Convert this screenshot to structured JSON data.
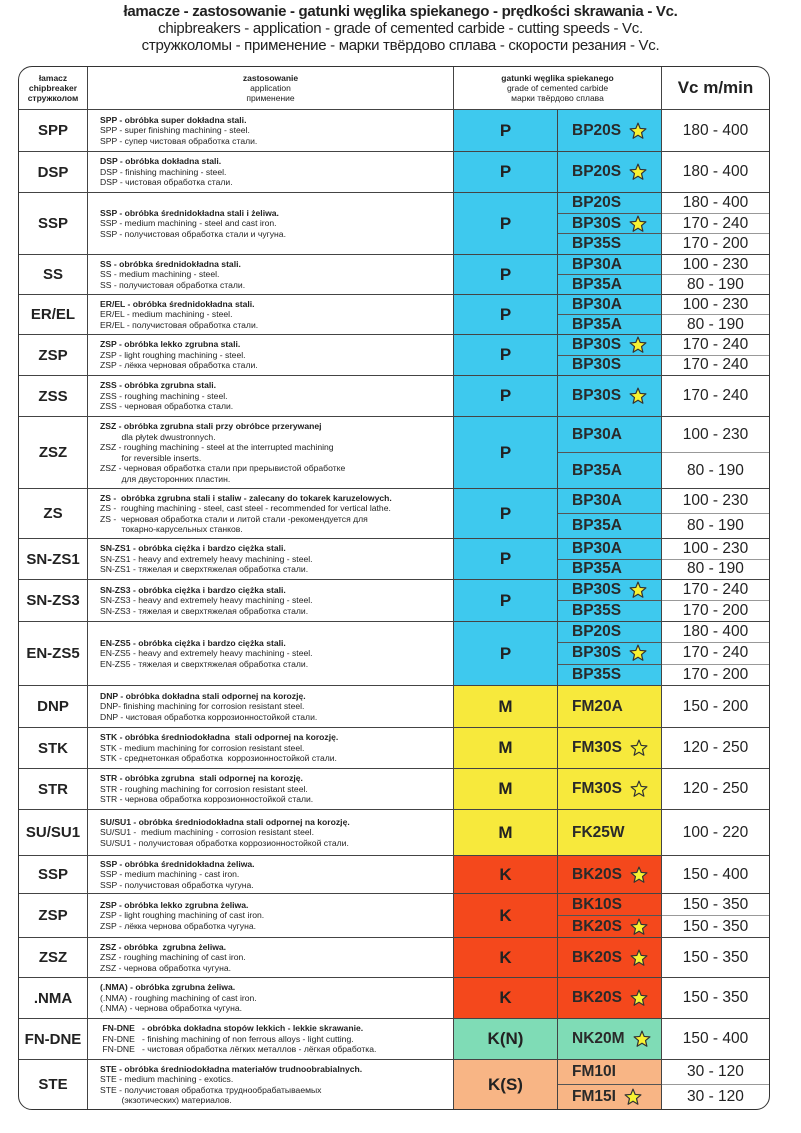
{
  "title": {
    "pl": "łamacze - zastosowanie - gatunki węglika spiekanego - prędkości skrawania - Vc.",
    "en": "chipbreakers - application - grade of cemented carbide - cutting speeds - Vc.",
    "ru": "стружколомы - применение - марки твёрдово сплава - скорости резания - Vc."
  },
  "header": {
    "chipbreaker": [
      "łamacz",
      "chipbreaker",
      "стружколом"
    ],
    "application": [
      "zastosowanie",
      "application",
      "применение"
    ],
    "grade": [
      "gatunki węglika spiekanego",
      "grade of cemented carbide",
      "марки твёрдово сплава"
    ],
    "vc": "Vc m/min"
  },
  "colors": {
    "P": "#3ec9ee",
    "M": "#f7e93c",
    "K": "#f4481c",
    "K(N)": "#7fdcb6",
    "K(S)": "#f8b585"
  },
  "rows": [
    {
      "code": "SPP",
      "group": "P",
      "lines": [
        "SPP - obróbka super dokładna stali.",
        "SPP - super finishing machining - steel.",
        "SPP - супер чистовая обработка стали."
      ],
      "grades": [
        {
          "name": "BP20S",
          "star": true,
          "vc": "180 - 400"
        }
      ]
    },
    {
      "code": "DSP",
      "group": "P",
      "lines": [
        "DSP - obróbka dokładna stali.",
        "DSP - finishing machining - steel.",
        "DSP - чистовая обработка стали."
      ],
      "grades": [
        {
          "name": "BP20S",
          "star": true,
          "vc": "180 - 400"
        }
      ]
    },
    {
      "code": "SSP",
      "group": "P",
      "lines": [
        "SSP - obróbka średnidokładna stali i żeliwa.",
        "SSP - medium machining - steel and cast iron.",
        "SSP - получистовая обработка стали и чугуна."
      ],
      "grades": [
        {
          "name": "BP20S",
          "star": false,
          "vc": "180 - 400"
        },
        {
          "name": "BP30S",
          "star": true,
          "vc": "170 - 240"
        },
        {
          "name": "BP35S",
          "star": false,
          "vc": "170 - 200"
        }
      ]
    },
    {
      "code": "SS",
      "group": "P",
      "lines": [
        "SS - obróbka średnidokładna stali.",
        "SS - medium machining - steel.",
        "SS - получистовая обработка стали."
      ],
      "grades": [
        {
          "name": "BP30A",
          "star": false,
          "vc": "100 - 230"
        },
        {
          "name": "BP35A",
          "star": false,
          "vc": "80 - 190"
        }
      ]
    },
    {
      "code": "ER/EL",
      "group": "P",
      "lines": [
        "ER/EL - obróbka średnidokładna stali.",
        "ER/EL - medium machining - steel.",
        "ER/EL - получистовая обработка стали."
      ],
      "grades": [
        {
          "name": "BP30A",
          "star": false,
          "vc": "100 - 230"
        },
        {
          "name": "BP35A",
          "star": false,
          "vc": "80 - 190"
        }
      ]
    },
    {
      "code": "ZSP",
      "group": "P",
      "lines": [
        "ZSP - obróbka lekko zgrubna stali.",
        "ZSP - light roughing machining - steel.",
        "ZSP - лёкка черновая обработка стали."
      ],
      "grades": [
        {
          "name": "BP30S",
          "star": true,
          "vc": "170 - 240"
        },
        {
          "name": "BP30S",
          "star": false,
          "vc": "170 - 240"
        }
      ]
    },
    {
      "code": "ZSS",
      "group": "P",
      "lines": [
        "ZSS - obróbka zgrubna stali.",
        "ZSS - roughing machining - steel.",
        "ZSS - черновая обработка стали."
      ],
      "grades": [
        {
          "name": "BP30S",
          "star": true,
          "vc": "170 - 240"
        }
      ]
    },
    {
      "code": "ZSZ",
      "group": "P",
      "lines": [
        "ZSZ - obróbka zgrubna stali przy obróbce przerywanej",
        "         dla płytek dwustronnych.",
        "ZSZ - roughing machining - steel at the interrupted machining",
        "         for reversible inserts.",
        "ZSZ - черновая обработка стали при прерывистой обработке",
        "         для двусторонних пластин."
      ],
      "grades": [
        {
          "name": "BP30A",
          "star": false,
          "vc": "100 - 230"
        },
        {
          "name": "BP35A",
          "star": false,
          "vc": "80 - 190"
        }
      ]
    },
    {
      "code": "ZS",
      "group": "P",
      "lines": [
        "ZS -  obróbka zgrubna stali i staliw - zalecany do tokarek karuzelowych.",
        "ZS -  roughing machining - steel, cast steel - recommended for vertical lathe.",
        "ZS -  черновая обработка стали и литой стали -рекомендуется для",
        "         токарно-карусельных станков."
      ],
      "grades": [
        {
          "name": "BP30A",
          "star": false,
          "vc": "100 - 230"
        },
        {
          "name": "BP35A",
          "star": false,
          "vc": "80 - 190"
        }
      ]
    },
    {
      "code": "SN-ZS1",
      "group": "P",
      "lines": [
        "SN-ZS1 - obróbka ciężka i bardzo ciężka stali.",
        "SN-ZS1 - heavy and extremely heavy machining - steel.",
        "SN-ZS1 - тяжелая и сверхтяжелая обработка стали."
      ],
      "grades": [
        {
          "name": "BP30A",
          "star": false,
          "vc": "100 - 230"
        },
        {
          "name": "BP35A",
          "star": false,
          "vc": "80 - 190"
        }
      ]
    },
    {
      "code": "SN-ZS3",
      "group": "P",
      "lines": [
        "SN-ZS3 - obróbka ciężka i bardzo ciężka stali.",
        "SN-ZS3 - heavy and extremely heavy machining - steel.",
        "SN-ZS3 - тяжелая и сверхтяжелая обработка стали."
      ],
      "grades": [
        {
          "name": "BP30S",
          "star": true,
          "vc": "170 - 240"
        },
        {
          "name": "BP35S",
          "star": false,
          "vc": "170 - 200"
        }
      ]
    },
    {
      "code": "EN-ZS5",
      "group": "P",
      "lines": [
        "EN-ZS5 - obróbka ciężka i bardzo ciężka stali.",
        "EN-ZS5 - heavy and extremely heavy machining - steel.",
        "EN-ZS5 - тяжелая и сверхтяжелая обработка стали."
      ],
      "grades": [
        {
          "name": "BP20S",
          "star": false,
          "vc": "180 - 400"
        },
        {
          "name": "BP30S",
          "star": true,
          "vc": "170 - 240"
        },
        {
          "name": "BP35S",
          "star": false,
          "vc": "170 - 200"
        }
      ]
    },
    {
      "code": "DNP",
      "group": "M",
      "lines": [
        "DNP - obróbka dokładna stali odpornej na korozję.",
        "DNP- finishing machining for corrosion resistant steel.",
        "DNP - чистовая обработка коррозионностойкой стали."
      ],
      "grades": [
        {
          "name": "FM20A",
          "star": false,
          "vc": "150 - 200"
        }
      ]
    },
    {
      "code": "STK",
      "group": "M",
      "lines": [
        "STK - obróbka średniodokładna  stali odpornej na korozję.",
        "STK - medium machining for corrosion resistant steel.",
        "STK - среднетонкая обработка  коррозионностойкой стали."
      ],
      "grades": [
        {
          "name": "FM30S",
          "star": true,
          "vc": "120 - 250"
        }
      ]
    },
    {
      "code": "STR",
      "group": "M",
      "lines": [
        "STR - obróbka zgrubna  stali odpornej na korozję.",
        "STR - roughing machining for corrosion resistant steel.",
        "STR - чернова обработка коррозионностойкой стали."
      ],
      "grades": [
        {
          "name": "FM30S",
          "star": true,
          "vc": "120 - 250"
        }
      ]
    },
    {
      "code": "SU/SU1",
      "group": "M",
      "lines": [
        "SU/SU1 - obróbka średniodokładna stali odpornej na korozję.",
        "SU/SU1 -  medium machining - corrosion resistant steel.",
        "SU/SU1 - получистовая обработка коррозионностойкой стали."
      ],
      "grades": [
        {
          "name": "FK25W",
          "star": false,
          "vc": "100 - 220"
        }
      ]
    },
    {
      "code": "SSP",
      "group": "K",
      "lines": [
        "SSP - obróbka średnidokładna żeliwa.",
        "SSP - medium machining - cast iron.",
        "SSP - получистовая обработка чугуна."
      ],
      "grades": [
        {
          "name": "BK20S",
          "star": true,
          "vc": "150 - 400"
        }
      ]
    },
    {
      "code": "ZSP",
      "group": "K",
      "lines": [
        "ZSP - obróbka lekko zgrubna żeliwa.",
        "ZSP - light roughing machining of cast iron.",
        "ZSP - лёкка чернова обработка чугуна."
      ],
      "grades": [
        {
          "name": "BK10S",
          "star": false,
          "vc": "150 - 350"
        },
        {
          "name": "BK20S",
          "star": true,
          "vc": "150 - 350"
        }
      ]
    },
    {
      "code": "ZSZ",
      "group": "K",
      "lines": [
        "ZSZ - obróbka  zgrubna żeliwa.",
        "ZSZ - roughing machining of cast iron.",
        "ZSZ - чернова обработка чугуна."
      ],
      "grades": [
        {
          "name": "BK20S",
          "star": true,
          "vc": "150 - 350"
        }
      ]
    },
    {
      "code": ".NMA",
      "group": "K",
      "lines": [
        "(.NMA) - obróbka zgrubna żeliwa.",
        "(.NMA) - roughing machining of cast iron.",
        "(.NMA) - чернова обработка чугуна."
      ],
      "grades": [
        {
          "name": "BK20S",
          "star": true,
          "vc": "150 - 350"
        }
      ]
    },
    {
      "code": "FN-DNE",
      "group": "K(N)",
      "lines": [
        " FN-DNE   - obróbka dokładna stopów lekkich - lekkie skrawanie.",
        " FN-DNE   - finishing machining of non ferrous alloys - light cutting.",
        " FN-DNE   - чистовая обработка лёгких металлов - лёгкая обработка."
      ],
      "grades": [
        {
          "name": "NK20M",
          "star": true,
          "vc": "150 - 400"
        }
      ]
    },
    {
      "code": "STE",
      "group": "K(S)",
      "lines": [
        "STE - obróbka średniodokładna materiałów trudnoobrabialnych.",
        "STE - medium machining - exotics.",
        "STE - получистовая обработка труднообрабатываемых",
        "         (экзотических) материалов."
      ],
      "grades": [
        {
          "name": "FM10I",
          "star": false,
          "vc": "30 - 120"
        },
        {
          "name": "FM15I",
          "star": true,
          "vc": "30 - 120"
        }
      ]
    }
  ]
}
